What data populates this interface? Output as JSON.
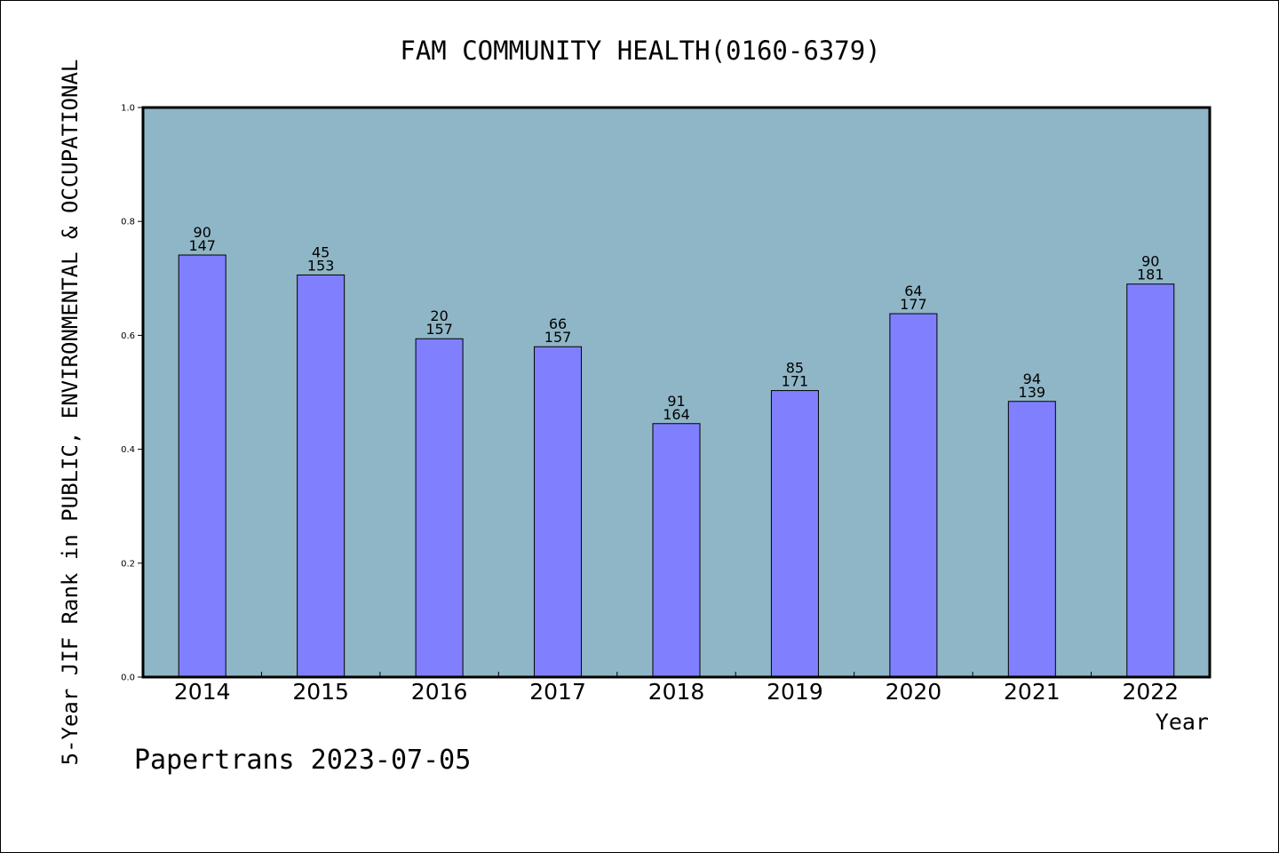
{
  "chart_data": {
    "type": "bar",
    "title": "FAM COMMUNITY HEALTH(0160-6379)",
    "xlabel": "Year",
    "ylabel": "5-Year JIF Rank in PUBLIC, ENVIRONMENTAL & OCCUPATIONAL",
    "ylim": [
      0,
      1.0
    ],
    "yticks": [
      "0.0",
      "0.2",
      "0.4",
      "0.6",
      "0.8",
      "1.0"
    ],
    "categories": [
      "2014",
      "2015",
      "2016",
      "2017",
      "2018",
      "2019",
      "2020",
      "2021",
      "2022"
    ],
    "values": [
      0.741,
      0.706,
      0.594,
      0.58,
      0.445,
      0.503,
      0.638,
      0.484,
      0.69
    ],
    "rank": [
      "90",
      "45",
      "20",
      "66",
      "91",
      "85",
      "64",
      "94",
      "90"
    ],
    "total": [
      "147",
      "153",
      "157",
      "157",
      "164",
      "171",
      "177",
      "139",
      "181"
    ],
    "grid": false,
    "colors": {
      "plot_background": "#8fb6c6",
      "bar_fill": "#8080ff",
      "bar_stroke": "#000000"
    }
  },
  "footer": "Papertrans 2023-07-05"
}
